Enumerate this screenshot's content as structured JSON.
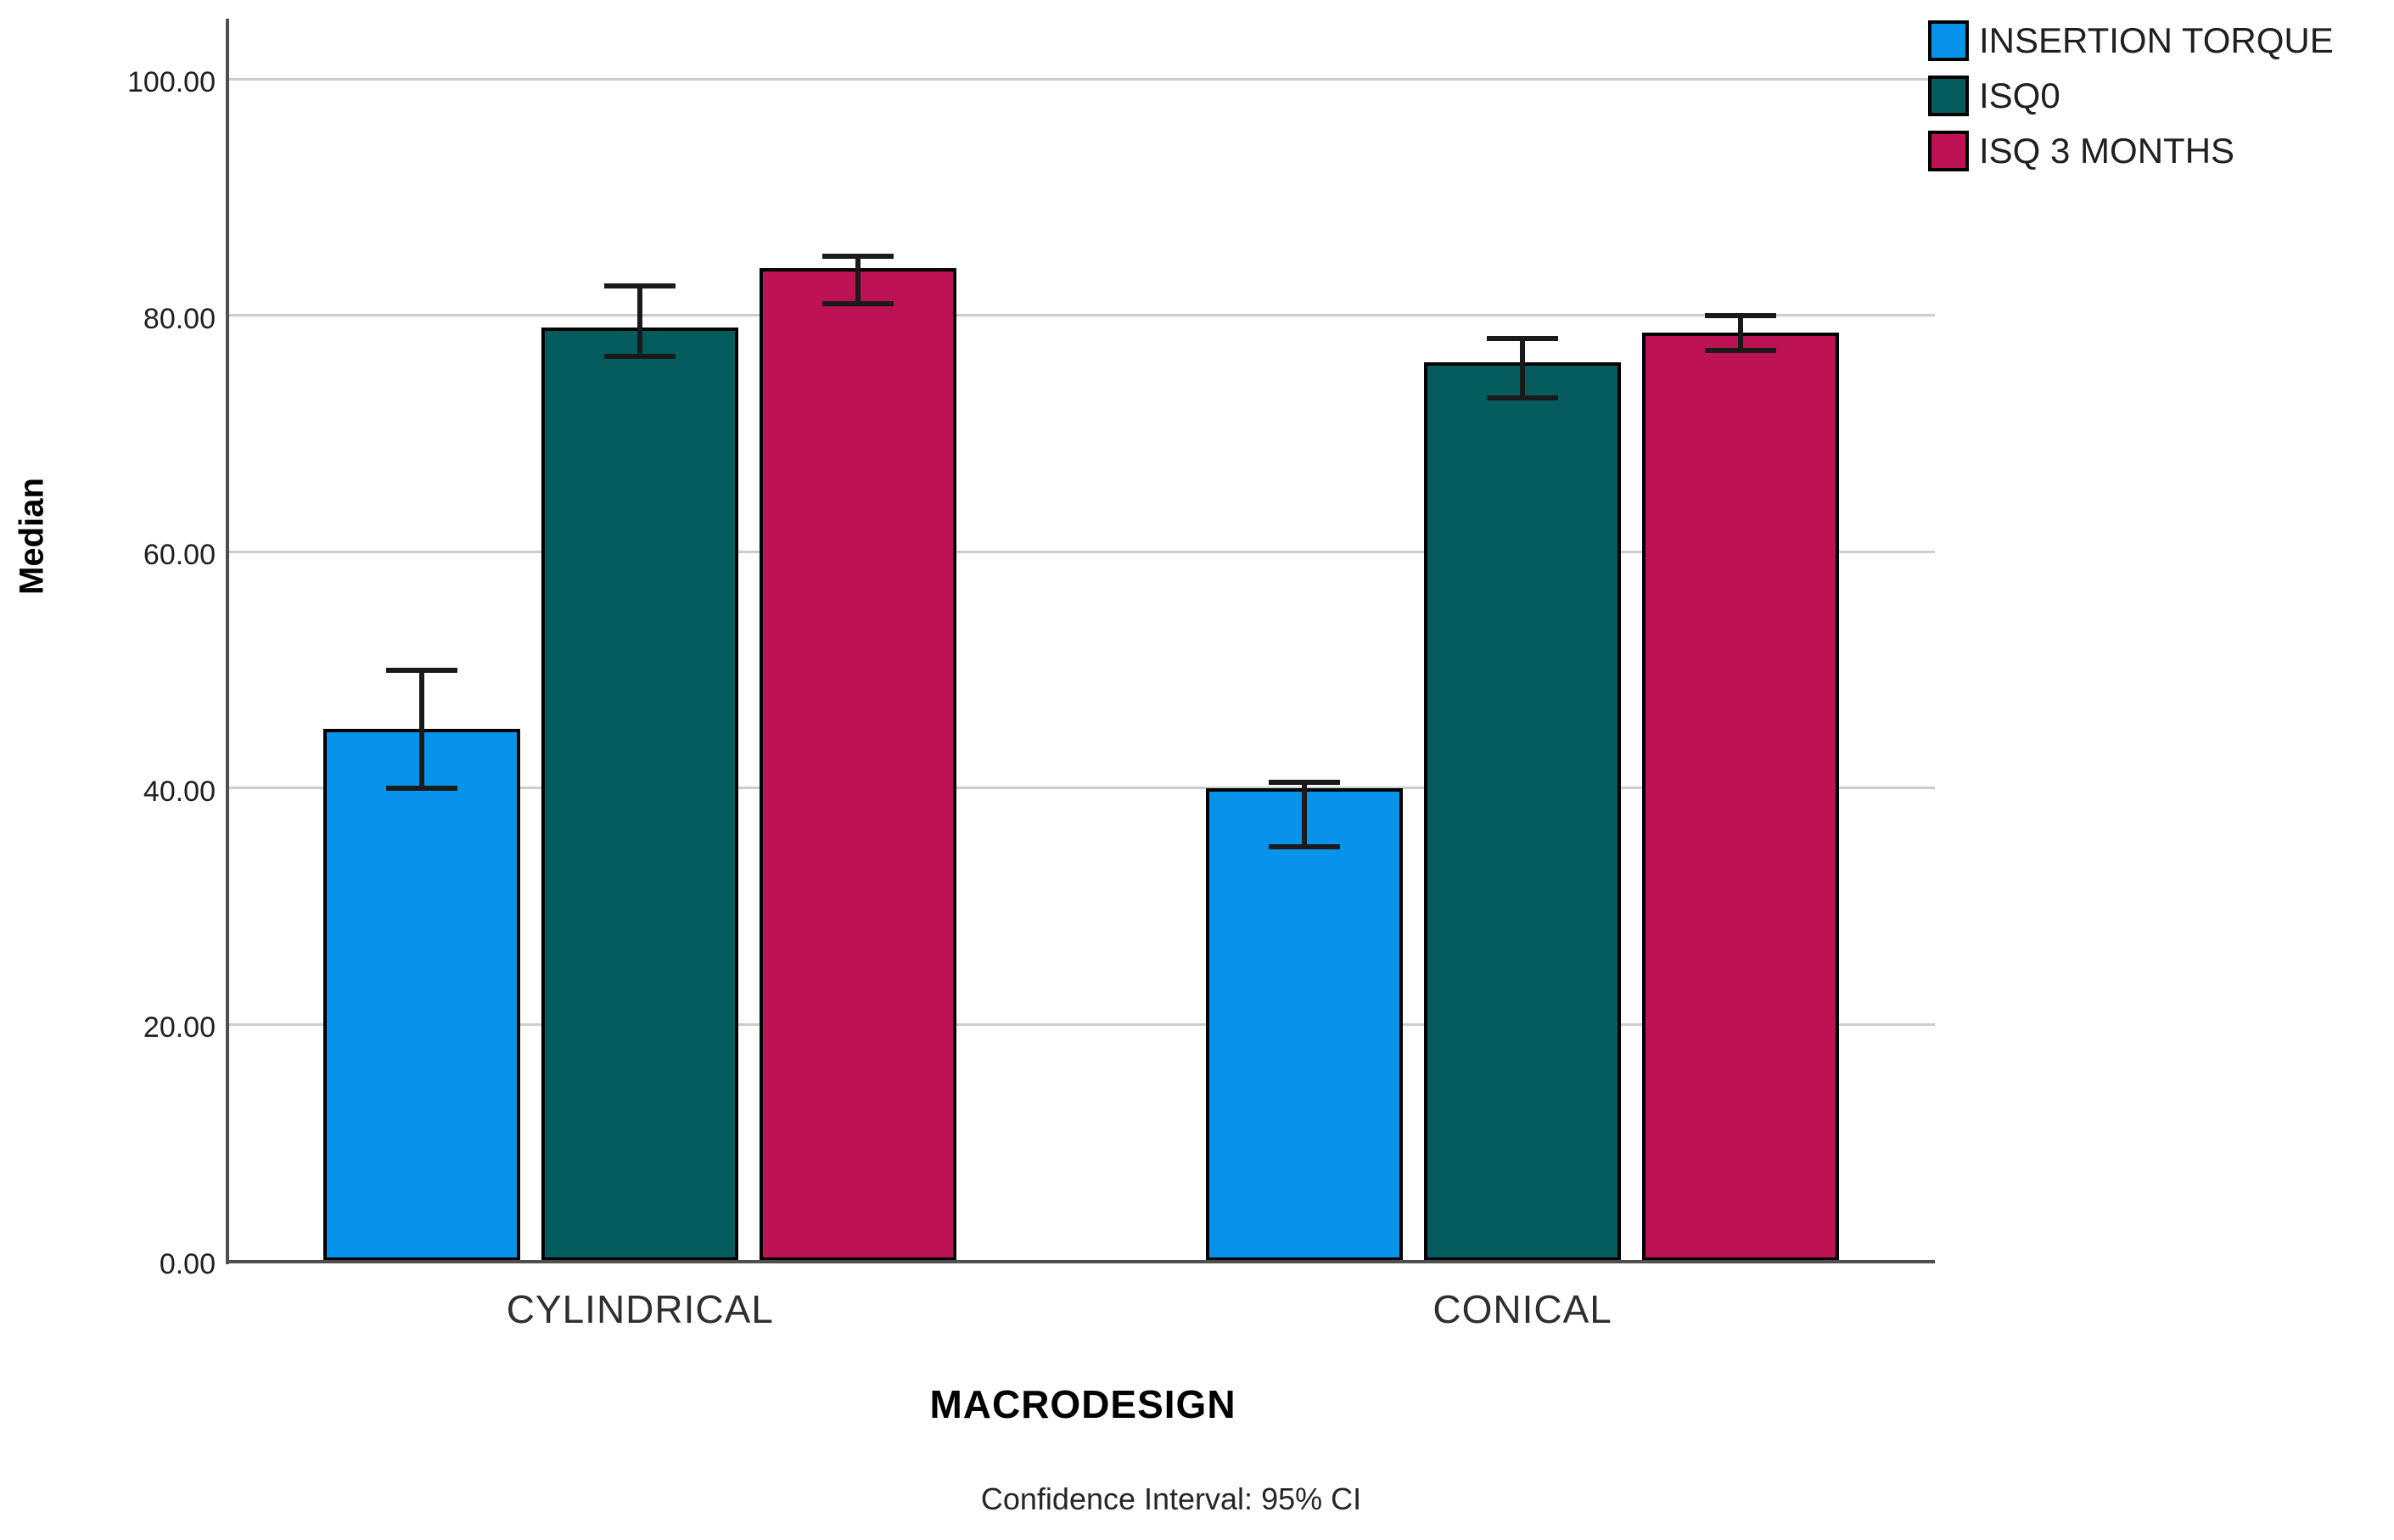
{
  "chart_data": {
    "type": "bar",
    "title": "",
    "ylabel": "Median",
    "xlabel": "MACRODESIGN",
    "footnote": "Confidence Interval: 95% CI",
    "categories": [
      "CYLINDRICAL",
      "CONICAL"
    ],
    "series": [
      {
        "name": "INSERTION TORQUE",
        "color": "#0693E9",
        "values": [
          45,
          40
        ],
        "ci_low": [
          40,
          35
        ],
        "ci_high": [
          50,
          40.5
        ]
      },
      {
        "name": "ISQ0",
        "color": "#045C5E",
        "values": [
          79,
          76
        ],
        "ci_low": [
          76.5,
          73
        ],
        "ci_high": [
          82.5,
          78
        ]
      },
      {
        "name": "ISQ 3 MONTHS",
        "color": "#BD1254",
        "values": [
          84,
          78.5
        ],
        "ci_low": [
          81,
          77
        ],
        "ci_high": [
          85,
          80
        ]
      }
    ],
    "ytick_values": [
      0,
      20,
      40,
      60,
      80,
      100
    ],
    "ytick_labels": [
      "0.00",
      "20.00",
      "40.00",
      "60.00",
      "80.00",
      "100.00"
    ],
    "ylim": [
      0,
      105
    ],
    "grid": true,
    "error_bars": true,
    "legend_position": "top-right",
    "colors": {
      "grid": "#cccccc",
      "axis": "#4f4f4f",
      "bar_border": "#000000",
      "error_bar": "#1a1a1a",
      "background": "#ffffff"
    }
  }
}
